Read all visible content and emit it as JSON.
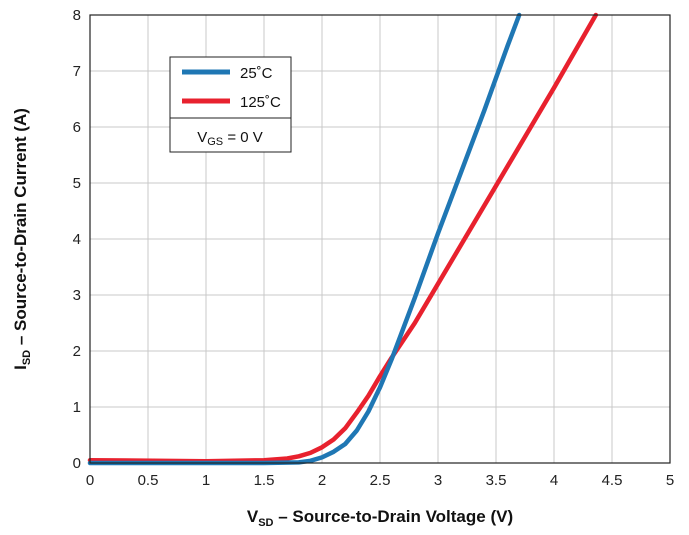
{
  "chart_data": {
    "type": "line",
    "title": "",
    "xlabel": {
      "main": "V",
      "sub": "SD",
      "rest": " – Source-to-Drain Voltage (V)"
    },
    "ylabel": {
      "main": "I",
      "sub": "SD",
      "rest": " – Source-to-Drain Current (A)"
    },
    "xlim": [
      0,
      5
    ],
    "ylim": [
      0,
      8
    ],
    "xticks": [
      "0",
      "0.5",
      "1",
      "1.5",
      "2",
      "2.5",
      "3",
      "3.5",
      "4",
      "4.5",
      "5"
    ],
    "yticks": [
      "0",
      "1",
      "2",
      "3",
      "4",
      "5",
      "6",
      "7",
      "8"
    ],
    "grid": true,
    "legend": {
      "placement": "top-left",
      "condition": {
        "main": "V",
        "sub": "GS",
        "rest": " = 0 V"
      }
    },
    "series": [
      {
        "name": "25˚C",
        "color": "#1f77b4",
        "x": [
          0,
          1.5,
          1.8,
          1.9,
          2.0,
          2.1,
          2.2,
          2.3,
          2.4,
          2.5,
          2.6,
          2.8,
          3.0,
          3.2,
          3.4,
          3.6,
          3.7
        ],
        "y": [
          0,
          0,
          0.01,
          0.04,
          0.1,
          0.2,
          0.34,
          0.58,
          0.92,
          1.35,
          1.85,
          2.95,
          4.1,
          5.2,
          6.3,
          7.45,
          8.0
        ]
      },
      {
        "name": "125˚C",
        "color": "#e8212e",
        "x": [
          0,
          1.0,
          1.5,
          1.7,
          1.8,
          1.9,
          2.0,
          2.1,
          2.2,
          2.3,
          2.4,
          2.5,
          2.6,
          2.8,
          3.0,
          3.5,
          4.0,
          4.36
        ],
        "y": [
          0.05,
          0.03,
          0.05,
          0.08,
          0.12,
          0.18,
          0.28,
          0.42,
          0.62,
          0.9,
          1.2,
          1.55,
          1.88,
          2.5,
          3.2,
          4.95,
          6.7,
          8.0
        ]
      }
    ]
  }
}
